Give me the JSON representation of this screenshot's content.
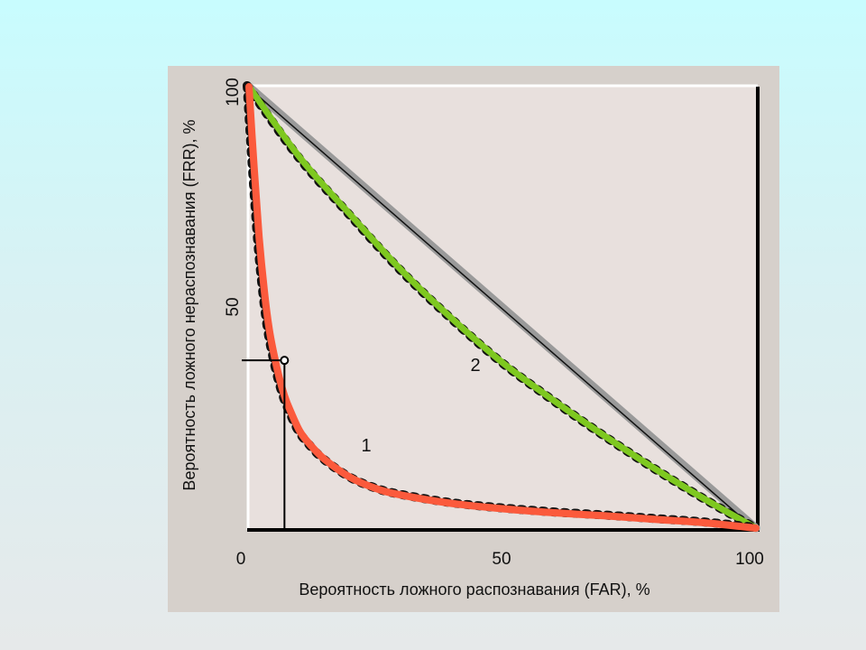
{
  "chart_data": {
    "type": "line",
    "xlabel": "Вероятность ложного распознавания (FAR), %",
    "ylabel": "Вероятность ложного нераспознавания (FRR), %",
    "xlim": [
      0,
      100
    ],
    "ylim": [
      0,
      100
    ],
    "x_ticks": [
      "0",
      "50",
      "100"
    ],
    "y_ticks": [
      "50",
      "100"
    ],
    "grid": false,
    "series": [
      {
        "name": "1",
        "color": "#fb5a3c",
        "x": [
          0,
          1,
          2,
          3,
          4,
          5,
          6,
          7,
          8,
          10,
          12,
          15,
          20,
          25,
          30,
          40,
          50,
          60,
          70,
          80,
          90,
          100
        ],
        "y": [
          100,
          82,
          66,
          54,
          45,
          39,
          34,
          30,
          27,
          22,
          19,
          15.5,
          11.5,
          9,
          7.5,
          5.6,
          4.4,
          3.5,
          2.8,
          2,
          1.2,
          0
        ]
      },
      {
        "name": "2",
        "color": "#7ec820",
        "x": [
          0,
          10,
          20,
          30,
          40,
          50,
          60,
          70,
          80,
          90,
          100
        ],
        "y": [
          100,
          84,
          71,
          58.5,
          47.5,
          37.5,
          29,
          21,
          13.5,
          6.5,
          0
        ]
      },
      {
        "name": "",
        "color": "#9a9a9a",
        "x": [
          0,
          100
        ],
        "y": [
          100,
          0
        ]
      }
    ],
    "marker_point": {
      "x": 7,
      "y": 38
    },
    "annotations": [
      "1",
      "2"
    ]
  }
}
